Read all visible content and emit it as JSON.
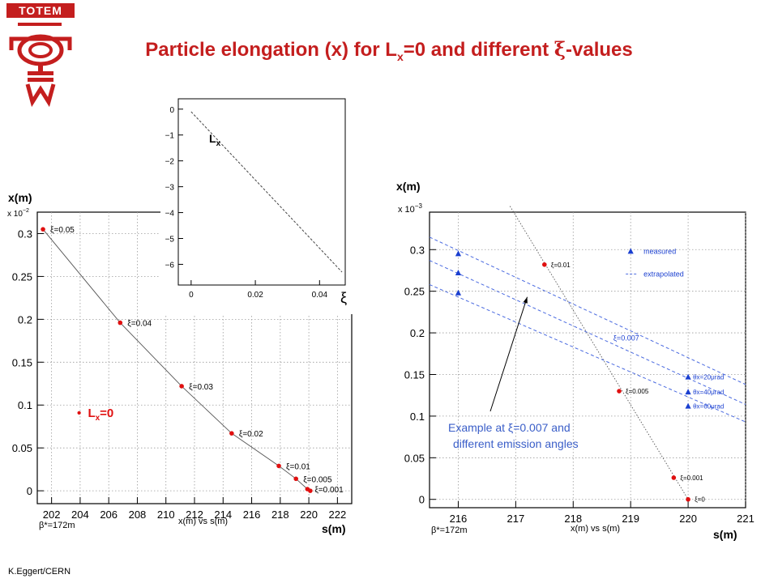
{
  "logo": {
    "text": "TOTEM",
    "color": "#c41e1e"
  },
  "title": {
    "pre": "Particle elongation (x) for L",
    "sub": "x",
    "mid": "=0 and different ",
    "xi": "ξ",
    "post": "-values"
  },
  "author": "K.Eggert/CERN",
  "left_chart": {
    "ylabel": "x(m)",
    "xlabel": "s(m)",
    "multiplier": "x 10",
    "exponent": "−2",
    "beta": "β*=172m",
    "caption": "x(m)   vs   s(m)",
    "legend": {
      "bullet": "•",
      "text": "L",
      "sub": "x",
      "rest": "=0"
    }
  },
  "inset_chart": {
    "curve_label": "L",
    "curve_sub": "x",
    "axis_symbol": "ξ"
  },
  "right_chart": {
    "ylabel": "x(m)",
    "xlabel": "s(m)",
    "multiplier": "x 10",
    "exponent": "−3",
    "beta": "β*=172m",
    "caption": "x(m)   vs   s(m)",
    "legend_measured": "measured",
    "legend_extrapolated": "extrapolated",
    "xi_label": "ξ=0.007",
    "annotation_line1": "Example at ξ=0.007  and",
    "annotation_line2": "different emission angles"
  },
  "colors": {
    "title": "#c41e1e",
    "point": "#e01010",
    "measured": "#1a3fd0",
    "extrap": "#4a6ae0",
    "annotation": "#3a5ec8"
  },
  "chart_data": [
    {
      "type": "line",
      "xlim": [
        201,
        223
      ],
      "ylim": [
        -0.015,
        0.325
      ],
      "x_ticks": [
        202,
        204,
        206,
        208,
        210,
        212,
        214,
        216,
        218,
        220,
        222
      ],
      "y_ticks": [
        0,
        0.05,
        0.1,
        0.15,
        0.2,
        0.25,
        0.3
      ],
      "y_tick_labels": [
        "0",
        "0.05",
        "0.1",
        "0.15",
        "0.2",
        "0.25",
        "0.3"
      ],
      "grid": true,
      "points": [
        {
          "x": 201.4,
          "y": 0.305,
          "label": "ξ=0.05"
        },
        {
          "x": 206.8,
          "y": 0.196,
          "label": "ξ=0.04"
        },
        {
          "x": 211.1,
          "y": 0.122,
          "label": "ξ=0.03"
        },
        {
          "x": 214.6,
          "y": 0.067,
          "label": "ξ=0.02"
        },
        {
          "x": 217.9,
          "y": 0.029,
          "label": "ξ=0.01"
        },
        {
          "x": 219.1,
          "y": 0.014,
          "label": "ξ=0.005"
        },
        {
          "x": 219.9,
          "y": 0.002,
          "label": "ξ=0.001"
        },
        {
          "x": 220.1,
          "y": 0.0,
          "label": ""
        }
      ]
    },
    {
      "type": "line",
      "xlim": [
        -0.004,
        0.048
      ],
      "ylim": [
        -6.8,
        0.4
      ],
      "x_ticks": [
        0,
        0.02,
        0.04
      ],
      "x_tick_labels": [
        "0",
        "0.02",
        "0.04"
      ],
      "y_ticks": [
        0,
        -1,
        -2,
        -3,
        -4,
        -5,
        -6
      ],
      "y_tick_labels": [
        "0",
        "−1",
        "−2",
        "−3",
        "−4",
        "−5",
        "−6"
      ],
      "line": [
        {
          "x": 0,
          "y": -0.1
        },
        {
          "x": 0.047,
          "y": -6.3
        }
      ]
    },
    {
      "type": "line",
      "xlim": [
        215.5,
        221
      ],
      "ylim": [
        -0.01,
        0.345
      ],
      "x_ticks": [
        216,
        217,
        218,
        219,
        220,
        221
      ],
      "y_ticks": [
        0,
        0.05,
        0.1,
        0.15,
        0.2,
        0.25,
        0.3
      ],
      "y_tick_labels": [
        "0",
        "0.05",
        "0.1",
        "0.15",
        "0.2",
        "0.25",
        "0.3"
      ],
      "grid": true,
      "red_points": [
        {
          "x": 217.5,
          "y": 0.282,
          "label": "ξ=0.01"
        },
        {
          "x": 218.8,
          "y": 0.13,
          "label": "ξ=0.005"
        },
        {
          "x": 219.75,
          "y": 0.026,
          "label": "ξ=0.001"
        },
        {
          "x": 220.0,
          "y": 0.0,
          "label": "ξ=0"
        }
      ],
      "measured_points": [
        {
          "x": 216.0,
          "y": 0.295
        },
        {
          "x": 216.0,
          "y": 0.272
        },
        {
          "x": 216.0,
          "y": 0.248
        },
        {
          "x": 220.0,
          "y": 0.147,
          "label": "θx=20μrad"
        },
        {
          "x": 220.0,
          "y": 0.129,
          "label": "θx=40μrad"
        },
        {
          "x": 220.0,
          "y": 0.112,
          "label": "θx=60μrad"
        }
      ],
      "extrapolated_lines": [
        {
          "from": {
            "x": 215.5,
            "y": 0.315
          },
          "to": {
            "x": 221.0,
            "y": 0.138
          }
        },
        {
          "from": {
            "x": 215.5,
            "y": 0.287
          },
          "to": {
            "x": 221.0,
            "y": 0.114
          }
        },
        {
          "from": {
            "x": 215.5,
            "y": 0.258
          },
          "to": {
            "x": 221.0,
            "y": 0.093
          }
        }
      ],
      "legend_marker": {
        "x": 219.0,
        "y": 0.298
      }
    }
  ]
}
